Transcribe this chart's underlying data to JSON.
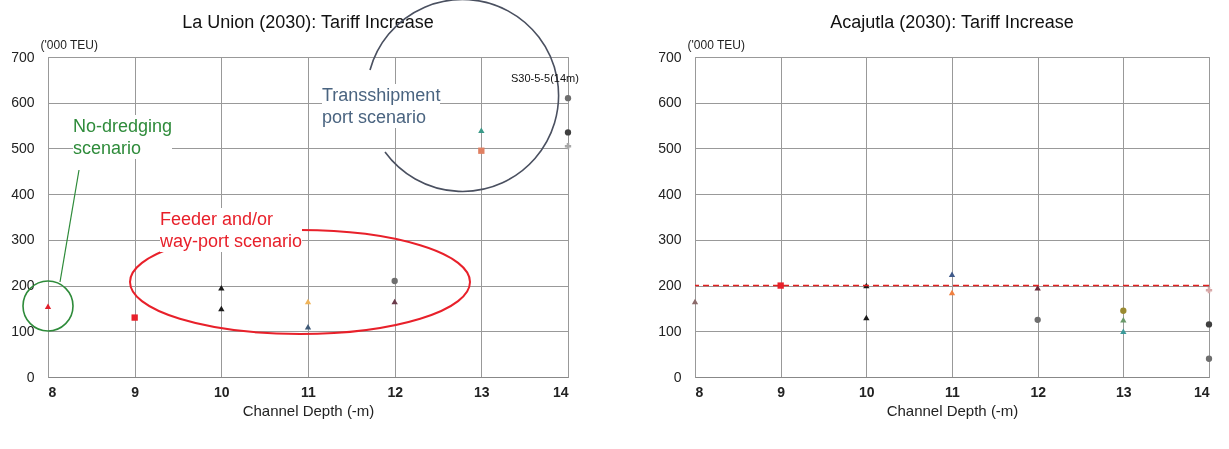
{
  "chart_data": [
    {
      "type": "scatter",
      "title": "La Union (2030): Tariff Increase",
      "xlabel": "Channel Depth (-m)",
      "ylabel": "('000 TEU)",
      "xlim": [
        8,
        14
      ],
      "xticks": [
        8,
        9,
        10,
        11,
        12,
        13,
        14
      ],
      "ylim": [
        0,
        700
      ],
      "yticks": [
        0,
        100,
        200,
        300,
        400,
        500,
        600,
        700
      ],
      "grid": true,
      "series": [
        {
          "color": "#e2202c",
          "marker": "triangle",
          "x": [
            8
          ],
          "values": [
            155
          ]
        },
        {
          "color": "#e8202a",
          "marker": "square",
          "x": [
            9
          ],
          "values": [
            130
          ]
        },
        {
          "color": "#1a1a1a",
          "marker": "triangle",
          "x": [
            10,
            10
          ],
          "values": [
            195,
            150
          ]
        },
        {
          "color": "#f0b45a",
          "marker": "triangle",
          "x": [
            11
          ],
          "values": [
            165
          ]
        },
        {
          "color": "#3f5a78",
          "marker": "triangle",
          "x": [
            11
          ],
          "values": [
            110
          ]
        },
        {
          "color": "#6e6e6e",
          "marker": "circle",
          "x": [
            12,
            14
          ],
          "values": [
            210,
            610
          ]
        },
        {
          "color": "#6b3a4a",
          "marker": "triangle",
          "x": [
            12
          ],
          "values": [
            165
          ]
        },
        {
          "color": "#3a9a88",
          "marker": "triangle",
          "x": [
            13
          ],
          "values": [
            540
          ]
        },
        {
          "color": "#e08062",
          "marker": "square",
          "x": [
            13
          ],
          "values": [
            495
          ]
        },
        {
          "color": "#404040",
          "marker": "circle",
          "x": [
            14
          ],
          "values": [
            535
          ]
        },
        {
          "color": "#a8a8a8",
          "marker": "cross",
          "x": [
            14
          ],
          "values": [
            505
          ]
        }
      ],
      "annotations": [
        "No-dredging\nscenario",
        "Feeder and/or\nway-port scenario",
        "Transshipment\nport scenario",
        "S30-5-5(14m)"
      ]
    },
    {
      "type": "scatter",
      "title": "Acajutla (2030): Tariff Increase",
      "xlabel": "Channel Depth (-m)",
      "ylabel": "('000 TEU)",
      "xlim": [
        8,
        14
      ],
      "xticks": [
        8,
        9,
        10,
        11,
        12,
        13,
        14
      ],
      "ylim": [
        0,
        700
      ],
      "yticks": [
        0,
        100,
        200,
        300,
        400,
        500,
        600,
        700
      ],
      "grid": true,
      "series": [
        {
          "color": "#8b6a6a",
          "marker": "triangle",
          "x": [
            8
          ],
          "values": [
            165
          ]
        },
        {
          "color": "#e8202a",
          "marker": "square",
          "x": [
            9
          ],
          "values": [
            200
          ]
        },
        {
          "color": "#1a1a1a",
          "marker": "triangle",
          "x": [
            10,
            10
          ],
          "values": [
            200,
            130
          ]
        },
        {
          "color": "#3f5a8a",
          "marker": "triangle",
          "x": [
            11
          ],
          "values": [
            225
          ]
        },
        {
          "color": "#f08040",
          "marker": "triangle",
          "x": [
            11
          ],
          "values": [
            185
          ]
        },
        {
          "color": "#6b2a3a",
          "marker": "triangle",
          "x": [
            12
          ],
          "values": [
            195
          ]
        },
        {
          "color": "#6e6e6e",
          "marker": "circle",
          "x": [
            12,
            14
          ],
          "values": [
            125,
            40
          ]
        },
        {
          "color": "#9a8a30",
          "marker": "circle",
          "x": [
            13
          ],
          "values": [
            145
          ]
        },
        {
          "color": "#6a9a6a",
          "marker": "triangle",
          "x": [
            13
          ],
          "values": [
            125
          ]
        },
        {
          "color": "#3a9a9a",
          "marker": "triangle",
          "x": [
            13
          ],
          "values": [
            100
          ]
        },
        {
          "color": "#d8a8a8",
          "marker": "cross",
          "x": [
            14
          ],
          "values": [
            190
          ]
        },
        {
          "color": "#404040",
          "marker": "circle",
          "x": [
            14
          ],
          "values": [
            115
          ]
        }
      ],
      "ref_lines": [
        {
          "axis": "y",
          "value": 200,
          "color": "#e02020",
          "line_style": "dashed"
        }
      ]
    }
  ]
}
